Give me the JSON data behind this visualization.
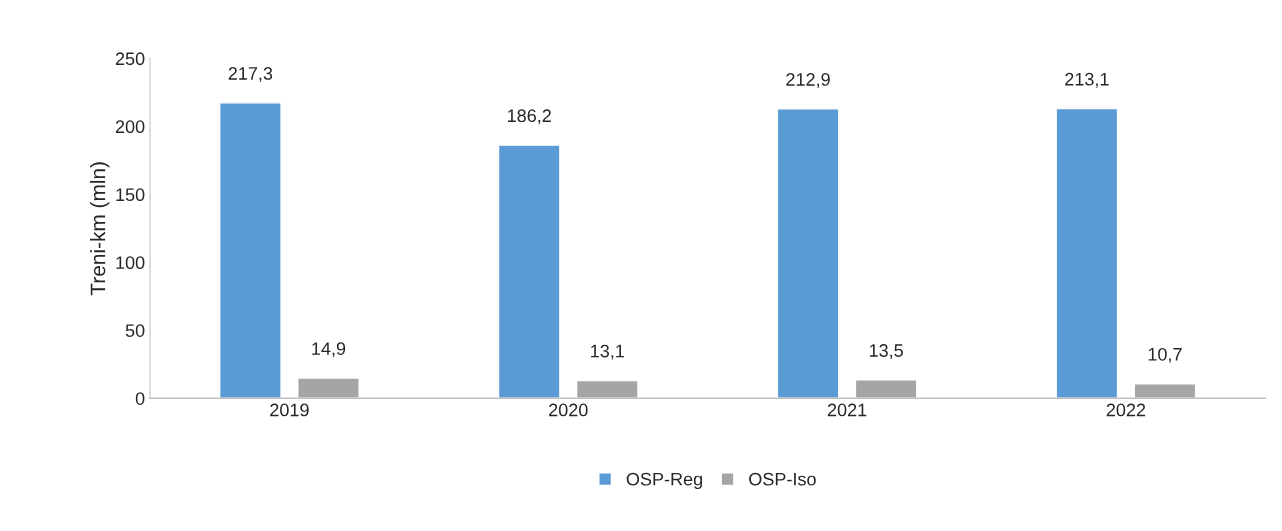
{
  "chart_data": {
    "type": "bar",
    "ylabel": "Treni-km (mln)",
    "categories": [
      "2019",
      "2020",
      "2021",
      "2022"
    ],
    "series": [
      {
        "name": "OSP-Reg",
        "color": "#5b9bd5",
        "values": [
          217.3,
          186.2,
          212.9,
          213.1
        ],
        "value_labels": [
          "217,3",
          "186,2",
          "212,9",
          "213,1"
        ]
      },
      {
        "name": "OSP-Iso",
        "color": "#a5a5a5",
        "values": [
          14.9,
          13.1,
          13.5,
          10.7
        ],
        "value_labels": [
          "14,9",
          "13,1",
          "13,5",
          "10,7"
        ]
      }
    ],
    "ylim": [
      0,
      250
    ],
    "yticks": [
      0,
      50,
      100,
      150,
      200,
      250
    ],
    "grid": false,
    "legend": "bottom"
  }
}
